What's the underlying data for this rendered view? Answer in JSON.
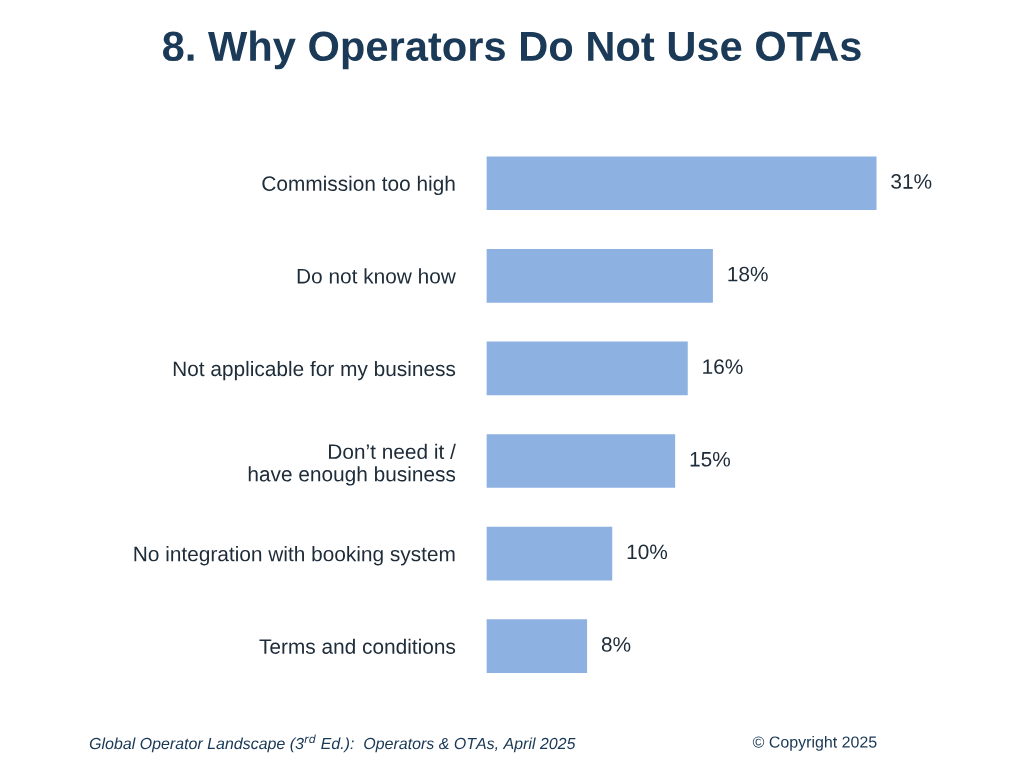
{
  "chart_data": {
    "type": "bar",
    "orientation": "horizontal",
    "title": "8. Why Operators Do Not Use OTAs",
    "categories": [
      "Commission too high",
      "Do not know how",
      "Not applicable for my business",
      "Don’t need it /\nhave enough business",
      "No integration with booking system",
      "Terms and conditions"
    ],
    "values": [
      31,
      18,
      16,
      15,
      10,
      8
    ],
    "value_labels": [
      "31%",
      "18%",
      "16%",
      "15%",
      "10%",
      "8%"
    ],
    "color": "#8db1e0",
    "annotations": [
      "Global Operator Landscape (3$^{rd}$ Ed.):  Operators & OTAs, April 2025",
      "© Copyright 2025"
    ],
    "grid": false,
    "legend": false
  }
}
